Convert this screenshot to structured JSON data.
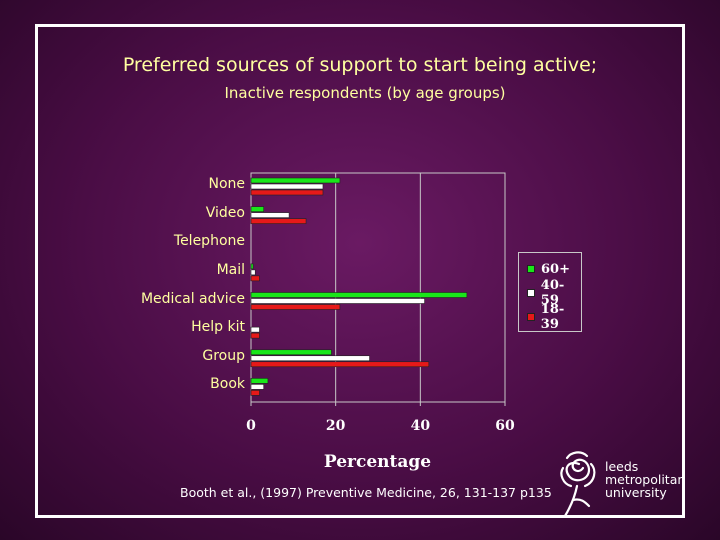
{
  "chart_data": {
    "type": "bar",
    "orientation": "horizontal",
    "title": "Preferred sources of support to start being active;",
    "subtitle": "Inactive respondents  (by age groups)",
    "xlabel": "Percentage",
    "xlim": [
      0,
      60
    ],
    "xticks": [
      "0",
      "20",
      "40",
      "60"
    ],
    "grid": true,
    "legend_position": "right",
    "categories": [
      "None",
      "Video",
      "Telephone",
      "Mail",
      "Medical advice",
      "Help kit",
      "Group",
      "Book"
    ],
    "series": [
      {
        "name": "60+",
        "color": "#19e619",
        "values": [
          21,
          3,
          0,
          0.5,
          51,
          0,
          19,
          4
        ]
      },
      {
        "name": "40-59",
        "color": "#ffffff",
        "values": [
          17,
          9,
          0,
          1,
          41,
          2,
          28,
          3
        ]
      },
      {
        "name": "18-39",
        "color": "#e61919",
        "values": [
          17,
          13,
          0,
          2,
          21,
          2,
          42,
          2
        ]
      }
    ]
  },
  "source": "Booth et al., (1997) Preventive Medicine, 26, 131-137  p135",
  "logo": {
    "line1": "leeds",
    "line2": "metropolitan",
    "line3": "university"
  }
}
